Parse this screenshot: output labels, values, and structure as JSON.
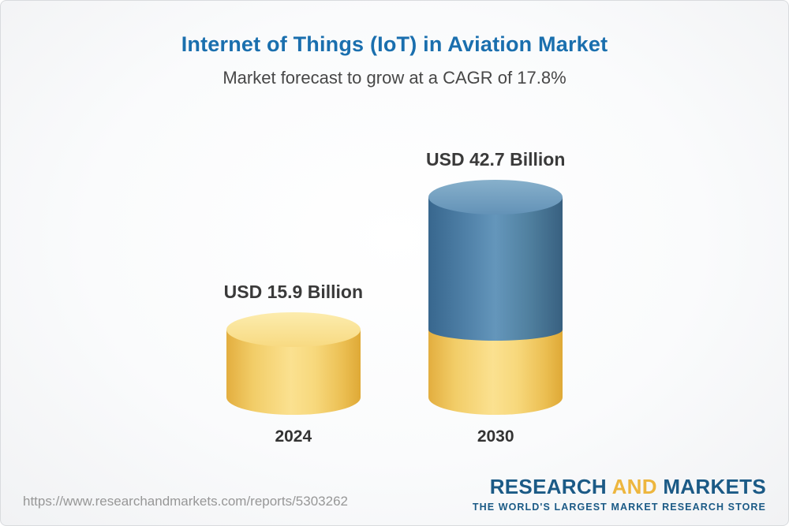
{
  "header": {
    "title": "Internet of Things (IoT) in Aviation Market",
    "subtitle": "Market forecast to grow at a CAGR of 17.8%"
  },
  "chart_data": {
    "type": "bar",
    "categories": [
      "2024",
      "2030"
    ],
    "values": [
      15.9,
      42.7
    ],
    "value_labels": [
      "USD 15.9 Billion",
      "USD 42.7 Billion"
    ],
    "unit": "USD Billion",
    "cagr_percent": 17.8,
    "title": "Internet of Things (IoT) in Aviation Market",
    "xlabel": "",
    "ylabel": "",
    "legend": "none",
    "grid": false,
    "bar_style": "3d-cylinder",
    "colors": {
      "bar_2024": "#f2cd68",
      "bar_2030_base_segment": "#f2cd68",
      "bar_2030_growth_segment": "#5182a9",
      "title_accent": "#1a6fae"
    }
  },
  "footer": {
    "source_url": "https://www.researchandmarkets.com/reports/5303262",
    "logo": {
      "word_research": "RESEARCH",
      "word_and": "AND",
      "word_markets": "MARKETS",
      "tagline": "THE WORLD'S LARGEST MARKET RESEARCH STORE"
    }
  }
}
